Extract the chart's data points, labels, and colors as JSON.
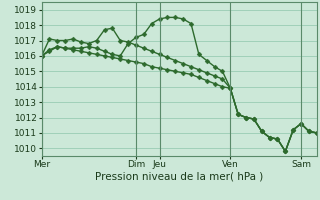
{
  "background_color": "#cce8d8",
  "grid_color": "#99ccb3",
  "line_color": "#2d6a2d",
  "marker": "D",
  "markersize": 2.5,
  "linewidth": 1.0,
  "ylim": [
    1009.5,
    1019.5
  ],
  "yticks": [
    1010,
    1011,
    1012,
    1013,
    1014,
    1015,
    1016,
    1017,
    1018,
    1019
  ],
  "xlabel": "Pression niveau de la mer( hPa )",
  "xlabel_fontsize": 7.5,
  "tick_fontsize": 6.5,
  "day_labels": [
    "Mer",
    "Dim",
    "Jeu",
    "Ven",
    "Sam"
  ],
  "day_x": [
    0,
    12,
    15,
    24,
    33
  ],
  "series1_x": [
    0,
    1,
    2,
    3,
    4,
    5,
    6,
    7,
    8,
    9,
    10,
    11,
    12,
    13,
    14,
    15,
    16,
    17,
    18,
    19,
    20,
    21,
    22,
    23,
    24,
    25,
    26,
    27,
    28,
    29,
    30,
    31,
    32,
    33,
    34,
    35
  ],
  "series1_y": [
    1016.0,
    1017.1,
    1017.0,
    1017.0,
    1017.1,
    1016.9,
    1016.8,
    1017.0,
    1017.7,
    1017.8,
    1017.0,
    1016.9,
    1016.7,
    1016.5,
    1016.3,
    1016.1,
    1015.9,
    1015.7,
    1015.5,
    1015.3,
    1015.1,
    1014.9,
    1014.7,
    1014.5,
    1013.9,
    1012.2,
    1012.0,
    1011.9,
    1011.1,
    1010.7,
    1010.6,
    1009.8,
    1011.2,
    1011.6,
    1011.1,
    1011.0
  ],
  "series2_x": [
    0,
    1,
    2,
    3,
    4,
    5,
    6,
    7,
    8,
    9,
    10,
    11,
    12,
    13,
    14,
    15,
    16,
    17,
    18,
    19,
    20,
    21,
    22,
    23,
    24,
    25,
    26,
    27,
    28,
    29,
    30,
    31,
    32,
    33,
    34,
    35
  ],
  "series2_y": [
    1016.0,
    1016.3,
    1016.6,
    1016.5,
    1016.5,
    1016.5,
    1016.6,
    1016.5,
    1016.3,
    1016.1,
    1016.0,
    1016.8,
    1017.2,
    1017.4,
    1018.1,
    1018.4,
    1018.5,
    1018.5,
    1018.4,
    1018.1,
    1016.1,
    1015.7,
    1015.3,
    1015.0,
    1013.9,
    1012.2,
    1012.0,
    1011.9,
    1011.1,
    1010.7,
    1010.6,
    1009.8,
    1011.2,
    1011.6,
    1011.1,
    1011.0
  ],
  "series3_x": [
    0,
    1,
    2,
    3,
    4,
    5,
    6,
    7,
    8,
    9,
    10,
    11,
    12,
    13,
    14,
    15,
    16,
    17,
    18,
    19,
    20,
    21,
    22,
    23,
    24,
    25,
    26,
    27,
    28,
    29,
    30,
    31,
    32,
    33,
    34,
    35
  ],
  "series3_y": [
    1016.0,
    1016.4,
    1016.6,
    1016.5,
    1016.4,
    1016.3,
    1016.2,
    1016.1,
    1016.0,
    1015.9,
    1015.8,
    1015.7,
    1015.6,
    1015.5,
    1015.3,
    1015.2,
    1015.1,
    1015.0,
    1014.9,
    1014.8,
    1014.6,
    1014.4,
    1014.2,
    1014.0,
    1013.9,
    1012.2,
    1012.0,
    1011.9,
    1011.1,
    1010.7,
    1010.6,
    1009.8,
    1011.2,
    1011.6,
    1011.1,
    1011.0
  ],
  "xlim": [
    0,
    35
  ]
}
